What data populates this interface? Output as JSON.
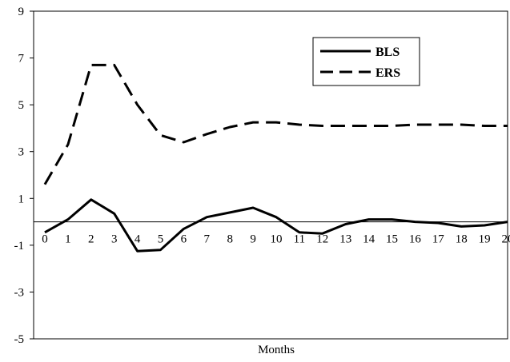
{
  "chart_data": {
    "type": "line",
    "xlabel": "Months",
    "ylabel": "",
    "title": "",
    "xlim": [
      0,
      20
    ],
    "ylim": [
      -5,
      9
    ],
    "yticks": [
      9,
      7,
      5,
      3,
      1,
      -1,
      -3,
      -5
    ],
    "x": [
      0,
      1,
      2,
      3,
      4,
      5,
      6,
      7,
      8,
      9,
      10,
      11,
      12,
      13,
      14,
      15,
      16,
      17,
      18,
      19,
      20
    ],
    "xtick_labels": [
      "0",
      "1",
      "2",
      "3",
      "4",
      "5",
      "6",
      "7",
      "8",
      "9",
      "10",
      "11",
      "12",
      "13",
      "14",
      "15",
      "16",
      "17",
      "18",
      "19",
      "20"
    ],
    "zero_line": true,
    "grid": false,
    "legend_position": "top-right",
    "series": [
      {
        "name": "BLS",
        "style": "solid",
        "color": "#000000",
        "values": [
          -0.45,
          0.1,
          0.95,
          0.35,
          -1.25,
          -1.2,
          -0.3,
          0.2,
          0.4,
          0.6,
          0.2,
          -0.45,
          -0.5,
          -0.1,
          0.1,
          0.1,
          0.0,
          -0.05,
          -0.2,
          -0.15,
          0.0
        ]
      },
      {
        "name": "ERS",
        "style": "dashed",
        "color": "#000000",
        "values": [
          1.6,
          3.3,
          6.7,
          6.7,
          5.0,
          3.7,
          3.4,
          3.75,
          4.05,
          4.25,
          4.25,
          4.15,
          4.1,
          4.1,
          4.1,
          4.1,
          4.15,
          4.15,
          4.15,
          4.1,
          4.1
        ]
      }
    ]
  }
}
